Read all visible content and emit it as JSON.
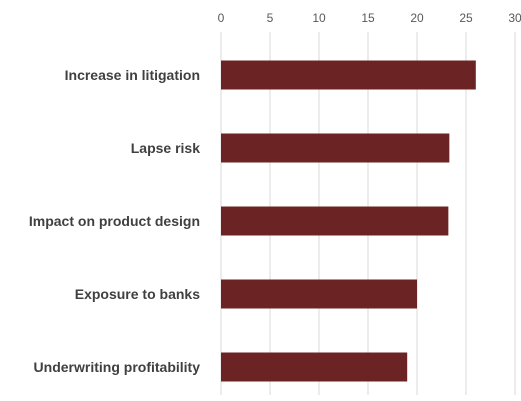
{
  "chart_data": {
    "type": "bar",
    "orientation": "horizontal",
    "title": "",
    "categories": [
      "Increase in litigation",
      "Lapse risk",
      "Impact on product design",
      "Exposure to banks",
      "Underwriting profitability"
    ],
    "values": [
      26,
      23.3,
      23.2,
      20,
      19
    ],
    "xlim": [
      0,
      30
    ],
    "xticks": [
      0,
      5,
      10,
      15,
      20,
      25,
      30
    ],
    "x_axis_position": "top",
    "grid": true,
    "legend": "none",
    "bar_color": "#6b2324",
    "grid_color": "#d9d9d9"
  }
}
